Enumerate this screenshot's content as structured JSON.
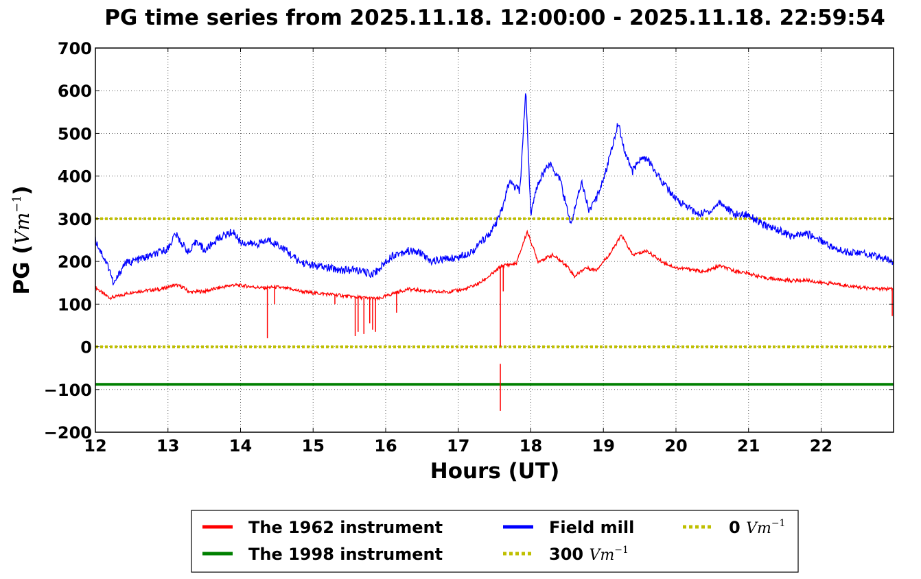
{
  "chart_data": {
    "type": "line",
    "title": "PG time series from 2025.11.18. 12:00:00 - 2025.11.18. 22:59:54",
    "xlabel": "Hours (UT)",
    "ylabel_text": "PG (",
    "ylabel_unit": "Vm",
    "ylabel_exp": "−1",
    "ylabel_close": ")",
    "xlim": [
      12,
      22.998
    ],
    "ylim": [
      -200,
      700
    ],
    "xticks": [
      "12",
      "13",
      "14",
      "15",
      "16",
      "17",
      "18",
      "19",
      "20",
      "21",
      "22"
    ],
    "yticks": [
      "700",
      "600",
      "500",
      "400",
      "300",
      "200",
      "100",
      "0",
      "−100",
      "−200"
    ],
    "ytick_values": [
      700,
      600,
      500,
      400,
      300,
      200,
      100,
      0,
      -100,
      -200
    ],
    "xtick_values": [
      12,
      13,
      14,
      15,
      16,
      17,
      18,
      19,
      20,
      21,
      22
    ],
    "grid": true,
    "legend_position": "bottom",
    "series": [
      {
        "name": "The 1962 instrument",
        "color": "#ff0000",
        "x": [
          12.0,
          12.1,
          12.2,
          12.3,
          12.5,
          12.7,
          12.9,
          13.1,
          13.2,
          13.3,
          13.5,
          13.7,
          13.9,
          14.1,
          14.3,
          14.5,
          14.7,
          14.9,
          15.1,
          15.3,
          15.5,
          15.7,
          15.9,
          16.1,
          16.3,
          16.5,
          16.7,
          16.9,
          17.1,
          17.3,
          17.5,
          17.6,
          17.8,
          17.95,
          18.1,
          18.3,
          18.5,
          18.6,
          18.75,
          18.9,
          19.1,
          19.25,
          19.4,
          19.6,
          19.8,
          20.0,
          20.2,
          20.4,
          20.6,
          20.8,
          21.0,
          21.2,
          21.4,
          21.6,
          21.8,
          22.0,
          22.2,
          22.4,
          22.6,
          22.8,
          22.99
        ],
        "y": [
          140,
          125,
          115,
          118,
          128,
          132,
          135,
          145,
          140,
          128,
          130,
          138,
          145,
          142,
          138,
          140,
          135,
          128,
          125,
          122,
          118,
          115,
          112,
          125,
          135,
          132,
          128,
          130,
          135,
          150,
          175,
          190,
          195,
          270,
          200,
          215,
          190,
          165,
          185,
          180,
          220,
          262,
          215,
          225,
          200,
          185,
          182,
          175,
          190,
          178,
          172,
          162,
          158,
          155,
          156,
          150,
          148,
          142,
          138,
          136,
          135
        ]
      },
      {
        "name": "Field mill",
        "color": "#0000ff",
        "x": [
          12.0,
          12.1,
          12.2,
          12.25,
          12.4,
          12.6,
          12.8,
          13.0,
          13.1,
          13.2,
          13.3,
          13.4,
          13.5,
          13.7,
          13.9,
          14.0,
          14.2,
          14.4,
          14.6,
          14.8,
          15.0,
          15.2,
          15.4,
          15.6,
          15.8,
          15.9,
          16.0,
          16.1,
          16.3,
          16.5,
          16.6,
          16.8,
          17.0,
          17.2,
          17.4,
          17.5,
          17.6,
          17.7,
          17.85,
          17.93,
          18.0,
          18.1,
          18.25,
          18.4,
          18.55,
          18.7,
          18.8,
          18.9,
          19.05,
          19.2,
          19.3,
          19.4,
          19.5,
          19.6,
          19.8,
          20.0,
          20.15,
          20.3,
          20.5,
          20.6,
          20.8,
          21.0,
          21.2,
          21.4,
          21.6,
          21.8,
          22.0,
          22.2,
          22.4,
          22.6,
          22.8,
          22.99
        ],
        "y": [
          250,
          215,
          180,
          145,
          195,
          205,
          215,
          230,
          265,
          240,
          220,
          250,
          225,
          255,
          270,
          245,
          240,
          250,
          230,
          200,
          190,
          185,
          180,
          180,
          170,
          180,
          200,
          215,
          225,
          220,
          200,
          205,
          210,
          225,
          260,
          280,
          320,
          385,
          365,
          605,
          310,
          385,
          430,
          395,
          285,
          390,
          320,
          345,
          420,
          525,
          455,
          410,
          440,
          440,
          390,
          345,
          330,
          310,
          320,
          340,
          310,
          310,
          285,
          275,
          258,
          265,
          250,
          228,
          222,
          218,
          210,
          200
        ]
      },
      {
        "name": "The 1998 instrument",
        "color": "#008000",
        "x": [
          12.0,
          22.998
        ],
        "y": [
          -88,
          -88
        ]
      }
    ],
    "spikes": [
      {
        "x": 14.37,
        "y": 20
      },
      {
        "x": 14.47,
        "y": 100
      },
      {
        "x": 15.3,
        "y": 100
      },
      {
        "x": 15.58,
        "y": 25
      },
      {
        "x": 15.62,
        "y": 35
      },
      {
        "x": 15.7,
        "y": 30
      },
      {
        "x": 15.78,
        "y": 55
      },
      {
        "x": 15.82,
        "y": 40
      },
      {
        "x": 15.86,
        "y": 35
      },
      {
        "x": 16.15,
        "y": 80
      },
      {
        "x": 17.58,
        "y": 0
      },
      {
        "x": 17.62,
        "y": 130
      },
      {
        "x": 22.98,
        "y": 72
      }
    ],
    "negative_spike": {
      "x": 17.58,
      "y_top": -40,
      "y_bottom": -150
    },
    "reference_lines": [
      {
        "name": "300 Vm⁻¹",
        "y": 300,
        "color": "#bfbf00"
      },
      {
        "name": "0 Vm⁻¹",
        "y": 0,
        "color": "#bfbf00"
      }
    ],
    "legend": [
      {
        "label": "The 1962 instrument",
        "color": "#ff0000",
        "style": "solid"
      },
      {
        "label": "The 1998 instrument",
        "color": "#008000",
        "style": "solid"
      },
      {
        "label": "Field mill",
        "color": "#0000ff",
        "style": "solid"
      },
      {
        "label_text": "300",
        "label_unit": "Vm",
        "label_exp": "−1",
        "color": "#bfbf00",
        "style": "dotted"
      },
      {
        "label_text": "0",
        "label_unit": "Vm",
        "label_exp": "−1",
        "color": "#bfbf00",
        "style": "dotted"
      }
    ]
  }
}
